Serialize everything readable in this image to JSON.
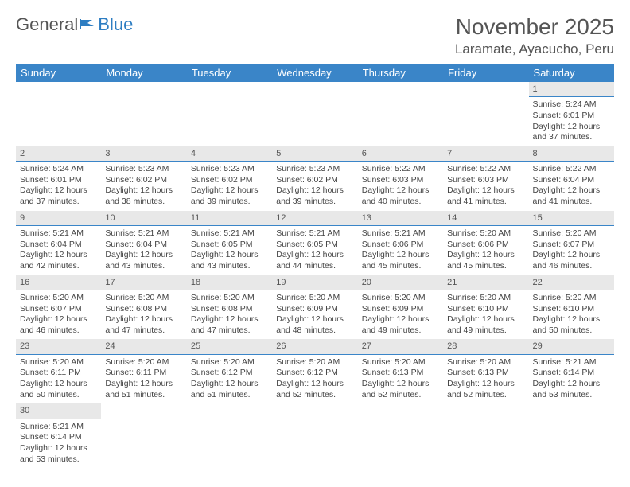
{
  "logo": {
    "text1": "General",
    "text2": "Blue"
  },
  "title": "November 2025",
  "location": "Laramate, Ayacucho, Peru",
  "colors": {
    "header_bg": "#3a85c8",
    "header_text": "#ffffff",
    "daynum_bg": "#e8e8e8",
    "divider": "#3a85c8",
    "body_text": "#444444",
    "logo_blue": "#2d7dc2"
  },
  "day_labels": [
    "Sunday",
    "Monday",
    "Tuesday",
    "Wednesday",
    "Thursday",
    "Friday",
    "Saturday"
  ],
  "weeks": [
    [
      null,
      null,
      null,
      null,
      null,
      null,
      {
        "n": "1",
        "sr": "5:24 AM",
        "ss": "6:01 PM",
        "dl": "12 hours and 37 minutes."
      }
    ],
    [
      {
        "n": "2",
        "sr": "5:24 AM",
        "ss": "6:01 PM",
        "dl": "12 hours and 37 minutes."
      },
      {
        "n": "3",
        "sr": "5:23 AM",
        "ss": "6:02 PM",
        "dl": "12 hours and 38 minutes."
      },
      {
        "n": "4",
        "sr": "5:23 AM",
        "ss": "6:02 PM",
        "dl": "12 hours and 39 minutes."
      },
      {
        "n": "5",
        "sr": "5:23 AM",
        "ss": "6:02 PM",
        "dl": "12 hours and 39 minutes."
      },
      {
        "n": "6",
        "sr": "5:22 AM",
        "ss": "6:03 PM",
        "dl": "12 hours and 40 minutes."
      },
      {
        "n": "7",
        "sr": "5:22 AM",
        "ss": "6:03 PM",
        "dl": "12 hours and 41 minutes."
      },
      {
        "n": "8",
        "sr": "5:22 AM",
        "ss": "6:04 PM",
        "dl": "12 hours and 41 minutes."
      }
    ],
    [
      {
        "n": "9",
        "sr": "5:21 AM",
        "ss": "6:04 PM",
        "dl": "12 hours and 42 minutes."
      },
      {
        "n": "10",
        "sr": "5:21 AM",
        "ss": "6:04 PM",
        "dl": "12 hours and 43 minutes."
      },
      {
        "n": "11",
        "sr": "5:21 AM",
        "ss": "6:05 PM",
        "dl": "12 hours and 43 minutes."
      },
      {
        "n": "12",
        "sr": "5:21 AM",
        "ss": "6:05 PM",
        "dl": "12 hours and 44 minutes."
      },
      {
        "n": "13",
        "sr": "5:21 AM",
        "ss": "6:06 PM",
        "dl": "12 hours and 45 minutes."
      },
      {
        "n": "14",
        "sr": "5:20 AM",
        "ss": "6:06 PM",
        "dl": "12 hours and 45 minutes."
      },
      {
        "n": "15",
        "sr": "5:20 AM",
        "ss": "6:07 PM",
        "dl": "12 hours and 46 minutes."
      }
    ],
    [
      {
        "n": "16",
        "sr": "5:20 AM",
        "ss": "6:07 PM",
        "dl": "12 hours and 46 minutes."
      },
      {
        "n": "17",
        "sr": "5:20 AM",
        "ss": "6:08 PM",
        "dl": "12 hours and 47 minutes."
      },
      {
        "n": "18",
        "sr": "5:20 AM",
        "ss": "6:08 PM",
        "dl": "12 hours and 47 minutes."
      },
      {
        "n": "19",
        "sr": "5:20 AM",
        "ss": "6:09 PM",
        "dl": "12 hours and 48 minutes."
      },
      {
        "n": "20",
        "sr": "5:20 AM",
        "ss": "6:09 PM",
        "dl": "12 hours and 49 minutes."
      },
      {
        "n": "21",
        "sr": "5:20 AM",
        "ss": "6:10 PM",
        "dl": "12 hours and 49 minutes."
      },
      {
        "n": "22",
        "sr": "5:20 AM",
        "ss": "6:10 PM",
        "dl": "12 hours and 50 minutes."
      }
    ],
    [
      {
        "n": "23",
        "sr": "5:20 AM",
        "ss": "6:11 PM",
        "dl": "12 hours and 50 minutes."
      },
      {
        "n": "24",
        "sr": "5:20 AM",
        "ss": "6:11 PM",
        "dl": "12 hours and 51 minutes."
      },
      {
        "n": "25",
        "sr": "5:20 AM",
        "ss": "6:12 PM",
        "dl": "12 hours and 51 minutes."
      },
      {
        "n": "26",
        "sr": "5:20 AM",
        "ss": "6:12 PM",
        "dl": "12 hours and 52 minutes."
      },
      {
        "n": "27",
        "sr": "5:20 AM",
        "ss": "6:13 PM",
        "dl": "12 hours and 52 minutes."
      },
      {
        "n": "28",
        "sr": "5:20 AM",
        "ss": "6:13 PM",
        "dl": "12 hours and 52 minutes."
      },
      {
        "n": "29",
        "sr": "5:21 AM",
        "ss": "6:14 PM",
        "dl": "12 hours and 53 minutes."
      }
    ],
    [
      {
        "n": "30",
        "sr": "5:21 AM",
        "ss": "6:14 PM",
        "dl": "12 hours and 53 minutes."
      },
      null,
      null,
      null,
      null,
      null,
      null
    ]
  ],
  "labels": {
    "sunrise": "Sunrise:",
    "sunset": "Sunset:",
    "daylight": "Daylight:"
  }
}
